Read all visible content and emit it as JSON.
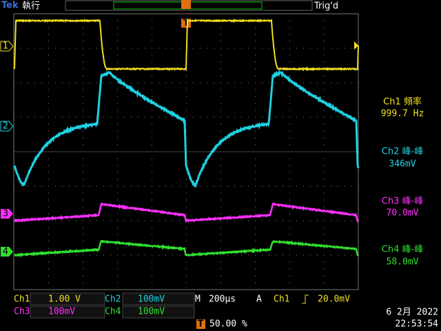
{
  "header": {
    "brand": "Tek",
    "status": "執行",
    "trigger_state": "Trig'd",
    "trigger_marker": "T"
  },
  "channel_markers": [
    "1",
    "2",
    "3",
    "4"
  ],
  "measurements": [
    {
      "label": "Ch1 頻率",
      "value": "999.7 Hz"
    },
    {
      "label": "Ch2 峰-峰",
      "value": "346mV"
    },
    {
      "label": "Ch3 峰-峰",
      "value": "70.0mV"
    },
    {
      "label": "Ch4 峰-峰",
      "value": "58.0mV"
    }
  ],
  "settings": {
    "ch1": {
      "label": "Ch1",
      "scale": "1.00 V"
    },
    "ch2": {
      "label": "Ch2",
      "scale": "100mV"
    },
    "ch3": {
      "label": "Ch3",
      "scale": "100mV"
    },
    "ch4": {
      "label": "Ch4",
      "scale": "100mV"
    },
    "timebase": {
      "label": "M",
      "value": "200µs"
    },
    "trigger": {
      "label": "A",
      "source": "Ch1",
      "level": "20.0mV"
    },
    "trigger_position": {
      "marker": "T",
      "value": "50.00 %"
    }
  },
  "datetime": {
    "date": "6 2月  2022",
    "time": "22:53:54"
  }
}
